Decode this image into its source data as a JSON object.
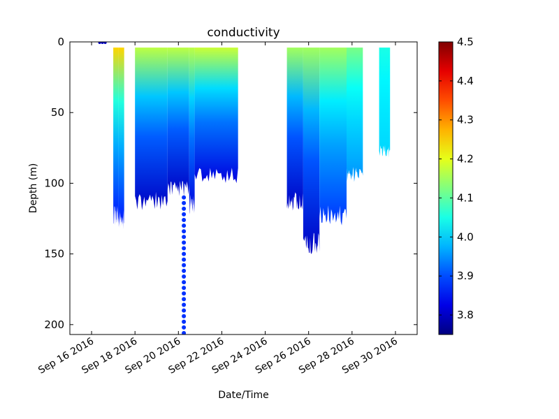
{
  "chart_data": {
    "type": "scatter",
    "title": "conductivity",
    "xlabel": "Date/Time",
    "ylabel": "Depth (m)",
    "x_axis": {
      "type": "date",
      "range": [
        "2016-09-15",
        "2016-10-01"
      ],
      "tick_labels": [
        "Sep 16 2016",
        "Sep 18 2016",
        "Sep 20 2016",
        "Sep 22 2016",
        "Sep 24 2016",
        "Sep 26 2016",
        "Sep 28 2016",
        "Sep 30 2016"
      ]
    },
    "y_axis": {
      "inverted": true,
      "range": [
        0,
        207
      ],
      "tick_labels": [
        "0",
        "50",
        "100",
        "150",
        "200"
      ]
    },
    "colorbar": {
      "colormap": "jet",
      "range": [
        3.75,
        4.5
      ],
      "tick_labels": [
        "3.8",
        "3.9",
        "4.0",
        "4.1",
        "4.2",
        "4.3",
        "4.4",
        "4.5"
      ]
    },
    "legend": "none",
    "grid": false,
    "segments": [
      {
        "start": "2016-09-17T00:00",
        "end": "2016-09-17T06:00",
        "min_depth": 4,
        "max_depth": 130,
        "surface_value": 4.25,
        "bottom_value": 3.85
      },
      {
        "start": "2016-09-17T06:00",
        "end": "2016-09-17T12:00",
        "min_depth": 4,
        "max_depth": 134,
        "surface_value": 4.25,
        "bottom_value": 3.85
      },
      {
        "start": "2016-09-18T00:00",
        "end": "2016-09-19T12:00",
        "min_depth": 4,
        "max_depth": 120,
        "surface_value": 4.17,
        "bottom_value": 3.8
      },
      {
        "start": "2016-09-19T12:00",
        "end": "2016-09-20T12:00",
        "min_depth": 4,
        "max_depth": 110,
        "surface_value": 4.17,
        "bottom_value": 3.8
      },
      {
        "start": "2016-09-20T12:00",
        "end": "2016-09-20T18:00",
        "min_depth": 4,
        "max_depth": 122,
        "surface_value": 4.17,
        "bottom_value": 3.82
      },
      {
        "start": "2016-09-20T18:00",
        "end": "2016-09-22T18:00",
        "min_depth": 4,
        "max_depth": 100,
        "surface_value": 4.18,
        "bottom_value": 3.82
      },
      {
        "start": "2016-09-25T00:00",
        "end": "2016-09-25T18:00",
        "min_depth": 4,
        "max_depth": 120,
        "surface_value": 4.15,
        "bottom_value": 3.8
      },
      {
        "start": "2016-09-25T18:00",
        "end": "2016-09-26T12:00",
        "min_depth": 4,
        "max_depth": 152,
        "surface_value": 4.15,
        "bottom_value": 3.8
      },
      {
        "start": "2016-09-26T12:00",
        "end": "2016-09-27T18:00",
        "min_depth": 4,
        "max_depth": 130,
        "surface_value": 4.15,
        "bottom_value": 3.88
      },
      {
        "start": "2016-09-27T18:00",
        "end": "2016-09-28T12:00",
        "min_depth": 4,
        "max_depth": 100,
        "surface_value": 4.12,
        "bottom_value": 3.95
      },
      {
        "start": "2016-09-29T06:00",
        "end": "2016-09-29T18:00",
        "min_depth": 4,
        "max_depth": 82,
        "surface_value": 4.05,
        "bottom_value": 4.0
      }
    ],
    "deep_profile": {
      "time": "2016-09-20T06:00",
      "min_depth": 110,
      "max_depth": 207,
      "value": 3.88
    },
    "surface_markers": {
      "time": "2016-09-16T12:00",
      "depth": 0,
      "value": 3.8
    }
  }
}
